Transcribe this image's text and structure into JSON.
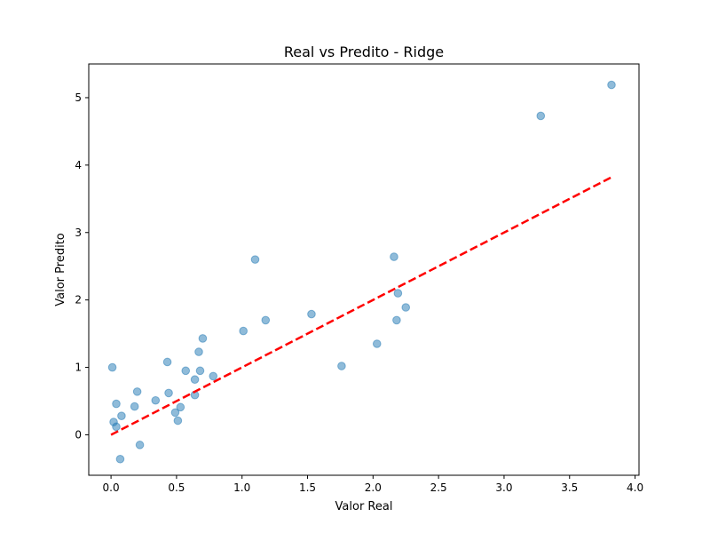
{
  "chart_data": {
    "type": "scatter",
    "title": "Real vs Predito - Ridge",
    "xlabel": "Valor Real",
    "ylabel": "Valor Predito",
    "xlim": [
      -0.17,
      4.03
    ],
    "ylim": [
      -0.6,
      5.5
    ],
    "xticks": [
      0.0,
      0.5,
      1.0,
      1.5,
      2.0,
      2.5,
      3.0,
      3.5,
      4.0
    ],
    "xtick_labels": [
      "0.0",
      "0.5",
      "1.0",
      "1.5",
      "2.0",
      "2.5",
      "3.0",
      "3.5",
      "4.0"
    ],
    "yticks": [
      0,
      1,
      2,
      3,
      4,
      5
    ],
    "ytick_labels": [
      "0",
      "1",
      "2",
      "3",
      "4",
      "5"
    ],
    "grid": false,
    "point_color": "#1f77b4",
    "line_color": "#ff0000",
    "reference_line": {
      "x": [
        0.0,
        3.82
      ],
      "y": [
        0.0,
        3.82
      ],
      "style": "dashed"
    },
    "points": [
      {
        "x": 0.01,
        "y": 1.0
      },
      {
        "x": 0.02,
        "y": 0.19
      },
      {
        "x": 0.04,
        "y": 0.12
      },
      {
        "x": 0.04,
        "y": 0.46
      },
      {
        "x": 0.07,
        "y": -0.36
      },
      {
        "x": 0.08,
        "y": 0.28
      },
      {
        "x": 0.18,
        "y": 0.42
      },
      {
        "x": 0.2,
        "y": 0.64
      },
      {
        "x": 0.22,
        "y": -0.15
      },
      {
        "x": 0.34,
        "y": 0.51
      },
      {
        "x": 0.43,
        "y": 1.08
      },
      {
        "x": 0.44,
        "y": 0.62
      },
      {
        "x": 0.49,
        "y": 0.33
      },
      {
        "x": 0.51,
        "y": 0.21
      },
      {
        "x": 0.53,
        "y": 0.41
      },
      {
        "x": 0.57,
        "y": 0.95
      },
      {
        "x": 0.64,
        "y": 0.82
      },
      {
        "x": 0.64,
        "y": 0.59
      },
      {
        "x": 0.67,
        "y": 1.23
      },
      {
        "x": 0.68,
        "y": 0.95
      },
      {
        "x": 0.7,
        "y": 1.43
      },
      {
        "x": 0.78,
        "y": 0.87
      },
      {
        "x": 1.01,
        "y": 1.54
      },
      {
        "x": 1.1,
        "y": 2.6
      },
      {
        "x": 1.18,
        "y": 1.7
      },
      {
        "x": 1.53,
        "y": 1.79
      },
      {
        "x": 1.76,
        "y": 1.02
      },
      {
        "x": 2.03,
        "y": 1.35
      },
      {
        "x": 2.16,
        "y": 2.64
      },
      {
        "x": 2.18,
        "y": 1.7
      },
      {
        "x": 2.19,
        "y": 2.1
      },
      {
        "x": 2.25,
        "y": 1.89
      },
      {
        "x": 3.28,
        "y": 4.73
      },
      {
        "x": 3.82,
        "y": 5.19
      }
    ]
  }
}
